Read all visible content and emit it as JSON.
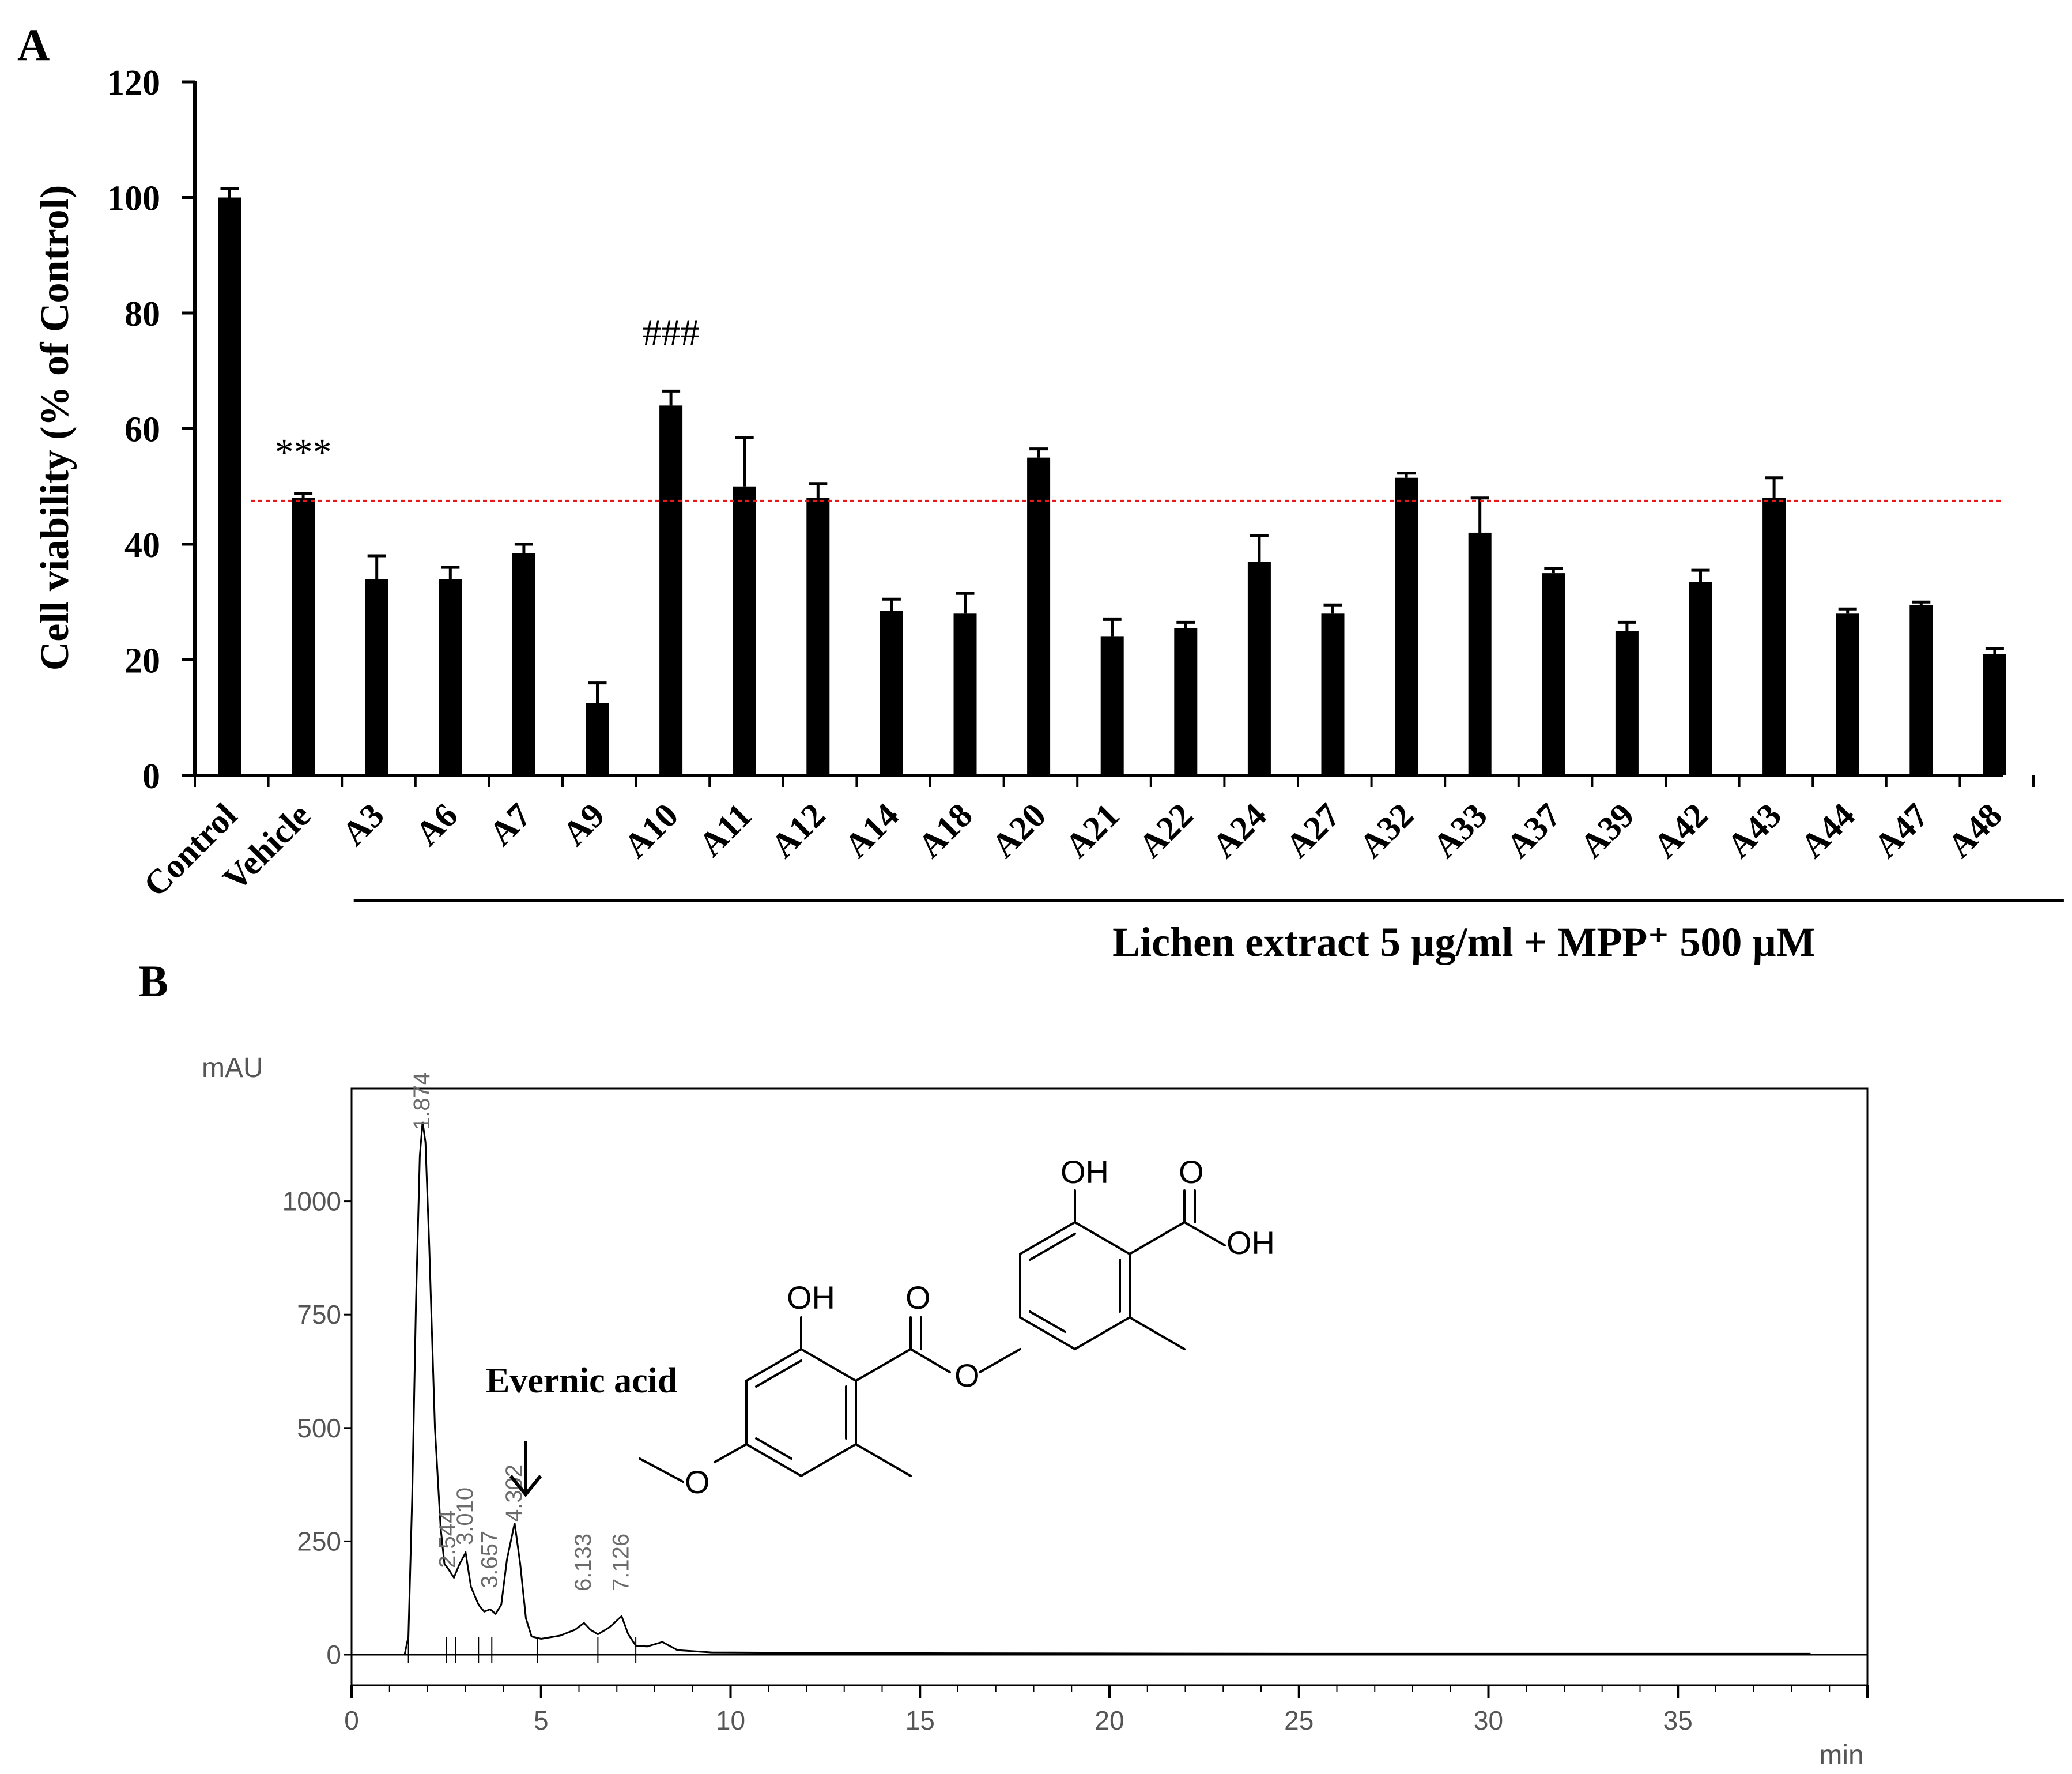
{
  "panel_labels": {
    "a": "A",
    "b": "B"
  },
  "colors": {
    "bar": "#000000",
    "ref_line": "#e8191b",
    "trace": "#000000",
    "hplc_text": "#6b6b6b"
  },
  "chart_data": [
    {
      "type": "bar",
      "panel": "A",
      "ylabel": "Cell viability (% of Control)",
      "xlabel": "Lichen extract 5 µg/ml + MPP⁺ 500 µM",
      "ylim": [
        0,
        120
      ],
      "yticks": [
        0,
        20,
        40,
        60,
        80,
        100,
        120
      ],
      "categories": [
        "Control",
        "Vehicle",
        "A3",
        "A6",
        "A7",
        "A9",
        "A10",
        "A11",
        "A12",
        "A14",
        "A18",
        "A20",
        "A21",
        "A22",
        "A24",
        "A27",
        "A32",
        "A33",
        "A37",
        "A39",
        "A42",
        "A43",
        "A44",
        "A47",
        "A48"
      ],
      "values": [
        100,
        48,
        34,
        34,
        38.5,
        12.5,
        64,
        50,
        48,
        28.5,
        28,
        55,
        24,
        25.5,
        37,
        28,
        51.5,
        42,
        35,
        25,
        33.5,
        48,
        28,
        29.5,
        21
      ],
      "errors": [
        1.5,
        0.8,
        4,
        2,
        1.5,
        3.5,
        2.5,
        8.5,
        2.5,
        2,
        3.5,
        1.5,
        3,
        1,
        4.5,
        1.5,
        0.8,
        6,
        0.8,
        1.5,
        2,
        3.5,
        0.8,
        0.5,
        1
      ],
      "reference_line": 47.5,
      "annotations": [
        {
          "category": "Vehicle",
          "text": "***"
        },
        {
          "category": "A10",
          "text": "###"
        }
      ],
      "bracket_from": "A3",
      "bracket_to": "A48"
    },
    {
      "type": "line",
      "panel": "B",
      "ylabel": "mAU",
      "xlabel": "min",
      "xlim": [
        0,
        40
      ],
      "ylim": [
        -70,
        1300
      ],
      "xticks": [
        0,
        5,
        10,
        15,
        20,
        25,
        30,
        35
      ],
      "yticks": [
        0,
        250,
        500,
        750,
        1000
      ],
      "trace": [
        [
          0,
          0
        ],
        [
          1.4,
          0
        ],
        [
          1.5,
          40
        ],
        [
          1.6,
          350
        ],
        [
          1.7,
          780
        ],
        [
          1.8,
          1100
        ],
        [
          1.874,
          1175
        ],
        [
          1.95,
          1130
        ],
        [
          2.05,
          900
        ],
        [
          2.2,
          500
        ],
        [
          2.35,
          280
        ],
        [
          2.45,
          200
        ],
        [
          2.544,
          190
        ],
        [
          2.7,
          170
        ],
        [
          2.85,
          200
        ],
        [
          3.01,
          225
        ],
        [
          3.15,
          150
        ],
        [
          3.35,
          110
        ],
        [
          3.5,
          95
        ],
        [
          3.657,
          100
        ],
        [
          3.8,
          90
        ],
        [
          3.95,
          110
        ],
        [
          4.1,
          210
        ],
        [
          4.302,
          290
        ],
        [
          4.45,
          200
        ],
        [
          4.6,
          80
        ],
        [
          4.75,
          40
        ],
        [
          5.0,
          35
        ],
        [
          5.5,
          42
        ],
        [
          5.9,
          55
        ],
        [
          6.133,
          70
        ],
        [
          6.3,
          55
        ],
        [
          6.5,
          45
        ],
        [
          6.8,
          60
        ],
        [
          7.126,
          85
        ],
        [
          7.3,
          45
        ],
        [
          7.5,
          20
        ],
        [
          7.8,
          18
        ],
        [
          8.2,
          28
        ],
        [
          8.6,
          10
        ],
        [
          9.5,
          5
        ],
        [
          12,
          4
        ],
        [
          16,
          3
        ],
        [
          25,
          2
        ],
        [
          38.5,
          2
        ]
      ],
      "peaks": [
        {
          "rt": 1.874,
          "label": "1.874"
        },
        {
          "rt": 2.544,
          "label": "2.544"
        },
        {
          "rt": 3.01,
          "label": "3.010"
        },
        {
          "rt": 3.657,
          "label": "3.657"
        },
        {
          "rt": 4.302,
          "label": "4.302"
        },
        {
          "rt": 6.133,
          "label": "6.133"
        },
        {
          "rt": 7.126,
          "label": "7.126"
        }
      ],
      "compound_label": "Evernic acid",
      "structure_labels": {
        "oh_left": "OH",
        "oh_right": "OH",
        "o_acid": "O",
        "oh_acid": "OH",
        "o_ester": "O",
        "o_bridge": "O",
        "o_methoxy": "O"
      }
    }
  ]
}
